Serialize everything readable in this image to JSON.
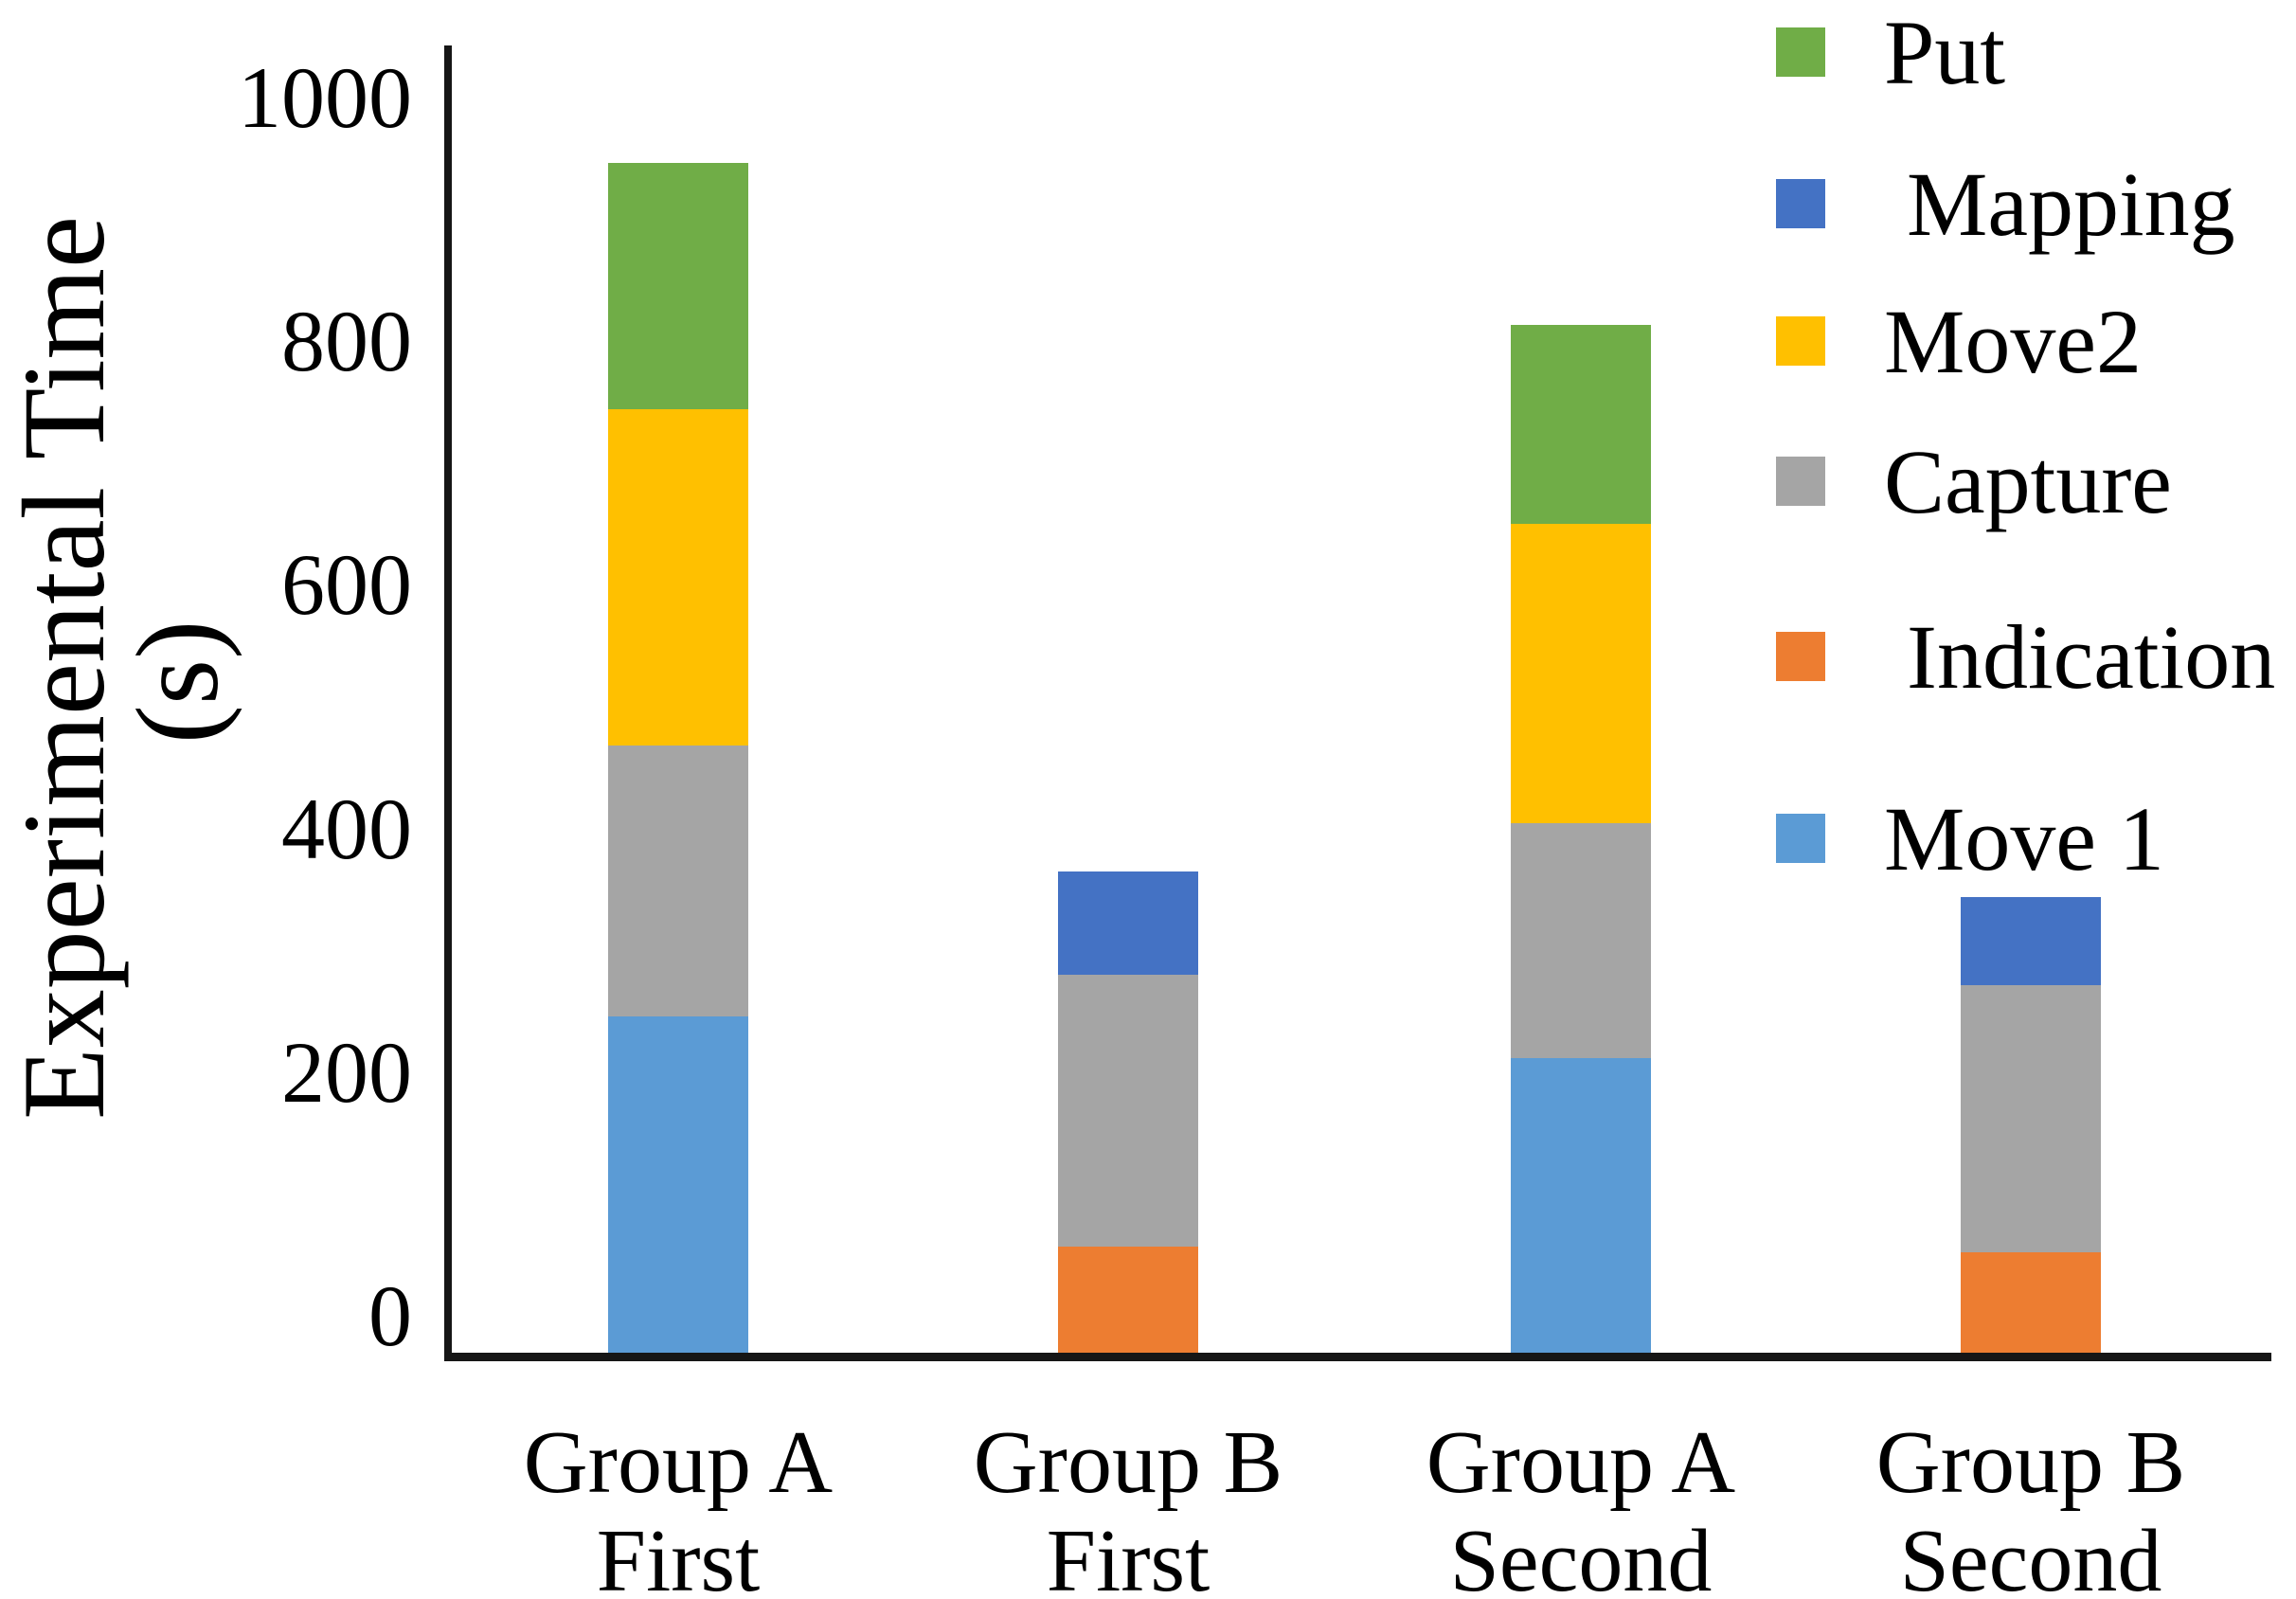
{
  "y_axis": {
    "title_line1": "Experimental Time",
    "title_line2": "(s)",
    "tick_labels": [
      "0",
      "200",
      "400",
      "600",
      "800",
      "1000"
    ]
  },
  "legend": {
    "position": "top-right",
    "items": [
      {
        "key": "put",
        "label": "Put",
        "color": "#70AD47"
      },
      {
        "key": "mapping",
        "label": " Mapping",
        "color": "#4472C4"
      },
      {
        "key": "move2",
        "label": "Move2",
        "color": "#FFC000"
      },
      {
        "key": "capture",
        "label": "Capture",
        "color": "#A5A5A5"
      },
      {
        "key": "indication",
        "label": " Indication",
        "color": "#ED7D31"
      },
      {
        "key": "move1",
        "label": "Move 1",
        "color": "#5B9BD5"
      }
    ]
  },
  "chart_data": {
    "type": "bar",
    "stacked": true,
    "categories": [
      {
        "line1": "Group A",
        "line2": "First"
      },
      {
        "line1": "Group B",
        "line2": "First"
      },
      {
        "line1": "Group A",
        "line2": "Second"
      },
      {
        "line1": "Group B",
        "line2": "Second"
      }
    ],
    "series": [
      {
        "name": "Move1",
        "key": "move1",
        "color": "#5B9BD5",
        "values": [
          280,
          0,
          246,
          0
        ]
      },
      {
        "name": "Indication",
        "key": "indication",
        "color": "#ED7D31",
        "values": [
          0,
          91,
          0,
          86
        ]
      },
      {
        "name": "Capture",
        "key": "capture",
        "color": "#A5A5A5",
        "values": [
          222,
          223,
          193,
          219
        ]
      },
      {
        "name": "Move2",
        "key": "move2",
        "color": "#FFC000",
        "values": [
          276,
          0,
          246,
          0
        ]
      },
      {
        "name": "Mapping",
        "key": "mapping",
        "color": "#4472C4",
        "values": [
          0,
          85,
          0,
          72
        ]
      },
      {
        "name": "Put",
        "key": "put",
        "color": "#70AD47",
        "values": [
          202,
          0,
          163,
          0
        ]
      }
    ],
    "totals": [
      980,
      399,
      848,
      377
    ],
    "title": "",
    "xlabel": "",
    "ylabel": "Experimental Time (s)",
    "ylim": [
      0,
      1000
    ],
    "yticks": [
      0,
      200,
      400,
      600,
      800,
      1000
    ],
    "grid": false,
    "legend_position": "top-right"
  }
}
